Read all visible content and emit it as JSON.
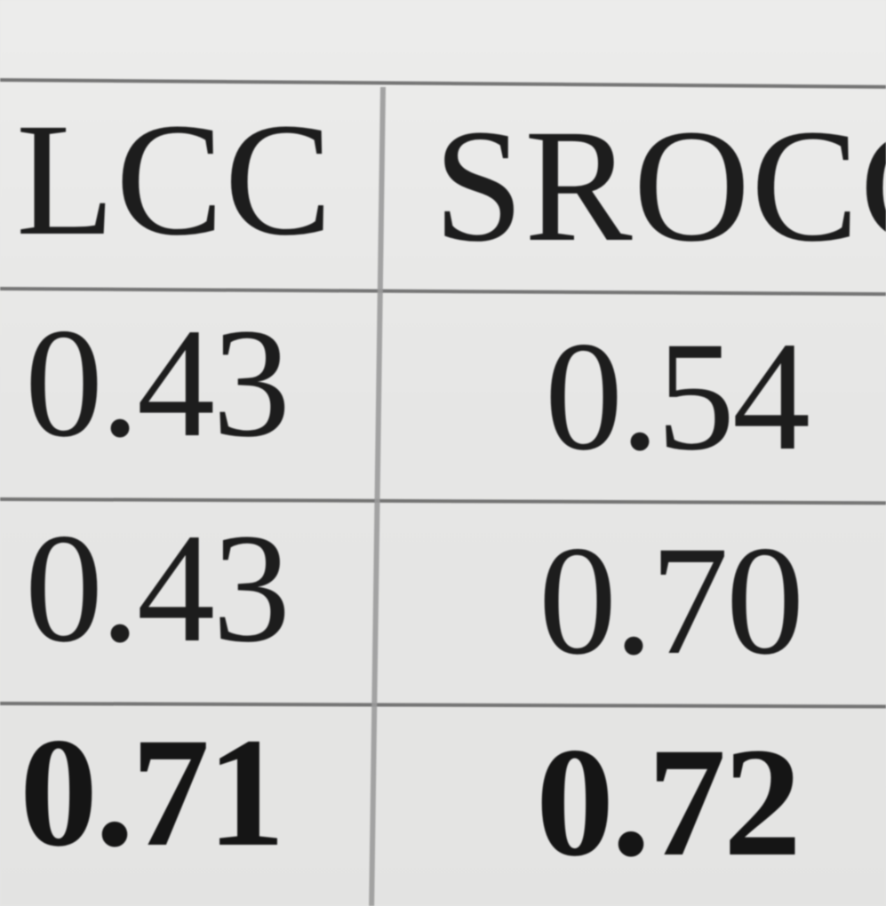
{
  "table": {
    "headers": [
      "LCC",
      "SROCC"
    ],
    "rows": [
      [
        "0.43",
        "0.54"
      ],
      [
        "0.43",
        "0.70"
      ],
      [
        "0.71",
        "0.72"
      ]
    ]
  }
}
